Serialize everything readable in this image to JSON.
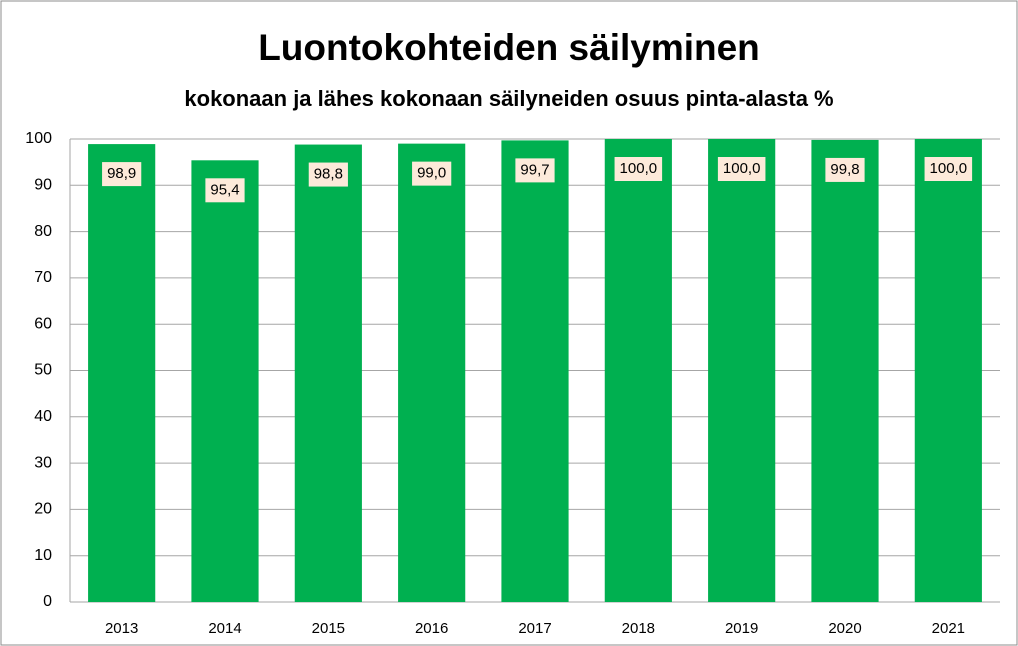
{
  "chart_data": {
    "type": "bar",
    "title": "Luontokohteiden säilyminen",
    "subtitle": "kokonaan ja lähes kokonaan säilyneiden osuus pinta-alasta %",
    "categories": [
      "2013",
      "2014",
      "2015",
      "2016",
      "2017",
      "2018",
      "2019",
      "2020",
      "2021"
    ],
    "values": [
      98.9,
      95.4,
      98.8,
      99.0,
      99.7,
      100.0,
      100.0,
      99.8,
      100.0
    ],
    "value_labels": [
      "98,9",
      "95,4",
      "98,8",
      "99,0",
      "99,7",
      "100,0",
      "100,0",
      "99,8",
      "100,0"
    ],
    "color": "#00b050",
    "ylim": [
      0,
      100
    ],
    "yticks": [
      0,
      10,
      20,
      30,
      40,
      50,
      60,
      70,
      80,
      90,
      100
    ],
    "grid": true
  }
}
